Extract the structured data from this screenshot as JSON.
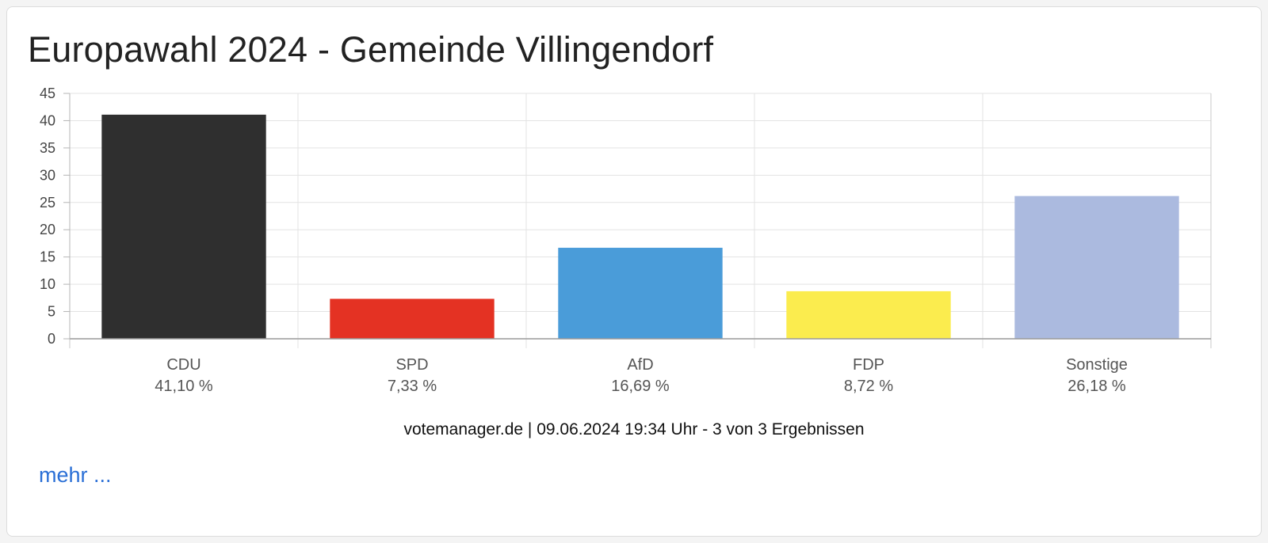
{
  "header": {
    "title": "Europawahl 2024 - Gemeinde Villingendorf"
  },
  "chart_data": {
    "type": "bar",
    "title": "Europawahl 2024 - Gemeinde Villingendorf",
    "categories": [
      "CDU",
      "SPD",
      "AfD",
      "FDP",
      "Sonstige"
    ],
    "values": [
      41.1,
      7.33,
      16.69,
      8.72,
      26.18
    ],
    "value_labels": [
      "41,10 %",
      "7,33 %",
      "16,69 %",
      "8,72 %",
      "26,18 %"
    ],
    "colors": [
      "#2f2f2f",
      "#e43223",
      "#4a9cd9",
      "#fbec4e",
      "#abbadf"
    ],
    "yticks": [
      "0",
      "5",
      "10",
      "15",
      "20",
      "25",
      "30",
      "35",
      "40",
      "45"
    ],
    "ylim": [
      0,
      45
    ],
    "xlabel": "",
    "ylabel": "",
    "grid": true
  },
  "footer": {
    "source": "votemanager.de | 09.06.2024 19:34 Uhr - 3 von 3 Ergebnissen"
  },
  "links": {
    "more_label": "mehr ..."
  }
}
